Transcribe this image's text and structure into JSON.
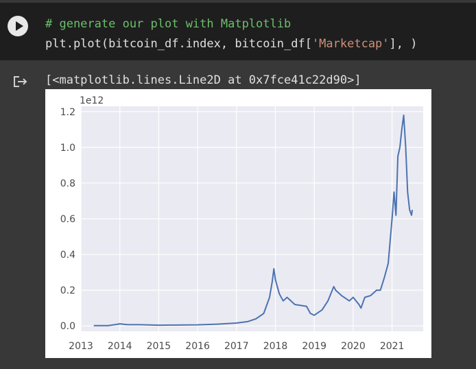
{
  "code_cell": {
    "line1": "# generate our plot with Matplotlib",
    "line2_prefix": "plt.plot(bitcoin_df.index, bitcoin_df[",
    "line2_string": "'Marketcap'",
    "line2_suffix": "], )"
  },
  "output": {
    "text": "[<matplotlib.lines.Line2D at 0x7fce41c22d90>]"
  },
  "icons": {
    "run": "play-icon",
    "output": "output-arrow-icon"
  },
  "colors": {
    "cell_bg": "#1e1e1e",
    "output_bg": "#383838",
    "comment": "#6bbf6b",
    "string": "#ce9178",
    "plot_bg": "#eaeaf2",
    "line": "#4c72b0"
  },
  "chart_data": {
    "type": "line",
    "multiplier_label": "1e12",
    "xlabel": "",
    "ylabel": "",
    "xlim": [
      2013.0,
      2021.8
    ],
    "ylim": [
      -0.03,
      1.23
    ],
    "xticks": [
      2013,
      2014,
      2015,
      2016,
      2017,
      2018,
      2019,
      2020,
      2021
    ],
    "xtick_labels": [
      "2013",
      "2014",
      "2015",
      "2016",
      "2017",
      "2018",
      "2019",
      "2020",
      "2021"
    ],
    "yticks": [
      0.0,
      0.2,
      0.4,
      0.6,
      0.8,
      1.0,
      1.2
    ],
    "ytick_labels": [
      "0.0",
      "0.2",
      "0.4",
      "0.6",
      "0.8",
      "1.0",
      "1.2"
    ],
    "grid": true,
    "series": [
      {
        "x": [
          2013.33,
          2013.7,
          2013.9,
          2014.0,
          2014.2,
          2014.5,
          2015.0,
          2015.5,
          2016.0,
          2016.5,
          2017.0,
          2017.3,
          2017.5,
          2017.7,
          2017.85,
          2017.92,
          2017.96,
          2018.0,
          2018.1,
          2018.2,
          2018.3,
          2018.5,
          2018.8,
          2018.9,
          2019.0,
          2019.2,
          2019.35,
          2019.5,
          2019.55,
          2019.7,
          2019.9,
          2020.0,
          2020.15,
          2020.2,
          2020.3,
          2020.45,
          2020.6,
          2020.7,
          2020.8,
          2020.9,
          2021.0,
          2021.05,
          2021.1,
          2021.15,
          2021.2,
          2021.25,
          2021.3,
          2021.35,
          2021.4,
          2021.45,
          2021.5,
          2021.52
        ],
        "y": [
          0.002,
          0.002,
          0.008,
          0.012,
          0.007,
          0.007,
          0.004,
          0.005,
          0.006,
          0.01,
          0.016,
          0.025,
          0.04,
          0.07,
          0.16,
          0.25,
          0.32,
          0.26,
          0.18,
          0.14,
          0.16,
          0.12,
          0.11,
          0.07,
          0.06,
          0.09,
          0.14,
          0.22,
          0.2,
          0.17,
          0.14,
          0.16,
          0.12,
          0.1,
          0.16,
          0.17,
          0.2,
          0.2,
          0.27,
          0.35,
          0.6,
          0.75,
          0.62,
          0.95,
          1.0,
          1.1,
          1.18,
          1.0,
          0.75,
          0.65,
          0.62,
          0.65
        ]
      }
    ]
  }
}
